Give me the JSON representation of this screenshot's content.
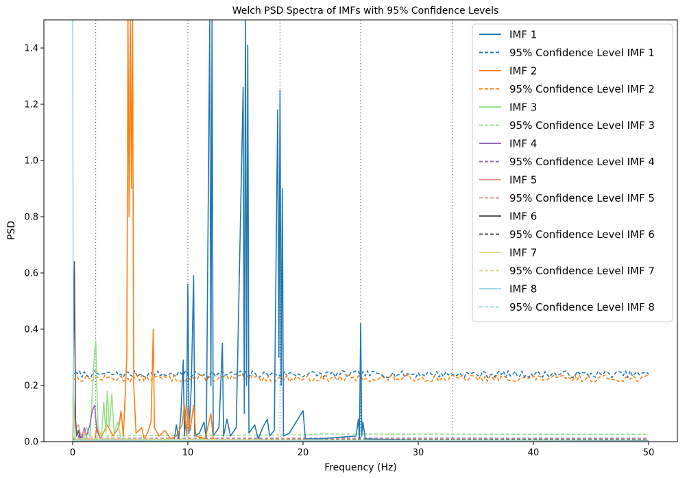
{
  "chart_data": {
    "type": "line",
    "title": "Welch PSD Spectra of IMFs with 95% Confidence Levels",
    "xlabel": "Frequency (Hz)",
    "ylabel": "PSD",
    "xlim": [
      -2.5,
      52.5
    ],
    "ylim": [
      0,
      1.5
    ],
    "xticks": [
      0,
      10,
      20,
      30,
      40,
      50
    ],
    "xtick_labels": [
      "0",
      "10",
      "20",
      "30",
      "40",
      "50"
    ],
    "yticks": [
      0.0,
      0.2,
      0.4,
      0.6,
      0.8,
      1.0,
      1.2,
      1.4
    ],
    "ytick_labels": [
      "0.0",
      "0.2",
      "0.4",
      "0.6",
      "0.8",
      "1.0",
      "1.2",
      "1.4"
    ],
    "grid": false,
    "legend_position": "top-right",
    "vlines": [
      2,
      10,
      18,
      25,
      33
    ],
    "vline_style": "dotted gray",
    "series": [
      {
        "name": "IMF 1",
        "color": "#1f77b4",
        "style": "solid",
        "points": [
          [
            0,
            0
          ],
          [
            8.8,
            0
          ],
          [
            9.0,
            0.06
          ],
          [
            9.2,
            0.01
          ],
          [
            9.4,
            0.1
          ],
          [
            9.6,
            0.29
          ],
          [
            9.7,
            0.02
          ],
          [
            9.9,
            0.15
          ],
          [
            10.0,
            0.56
          ],
          [
            10.1,
            0.03
          ],
          [
            10.3,
            0.2
          ],
          [
            10.5,
            0.59
          ],
          [
            10.6,
            0.02
          ],
          [
            11.0,
            0.03
          ],
          [
            11.4,
            0.07
          ],
          [
            11.6,
            0.01
          ],
          [
            11.9,
            1.5
          ],
          [
            12.0,
            0.2
          ],
          [
            12.1,
            1.5
          ],
          [
            12.2,
            0.02
          ],
          [
            12.7,
            0.05
          ],
          [
            13.0,
            0.35
          ],
          [
            13.1,
            0.02
          ],
          [
            13.4,
            0.08
          ],
          [
            13.7,
            0.02
          ],
          [
            14.2,
            0.05
          ],
          [
            14.8,
            1.26
          ],
          [
            14.9,
            0.1
          ],
          [
            15.0,
            1.5
          ],
          [
            15.1,
            0.2
          ],
          [
            15.2,
            1.41
          ],
          [
            15.3,
            0.03
          ],
          [
            15.8,
            0.06
          ],
          [
            16.1,
            0.01
          ],
          [
            16.5,
            0.05
          ],
          [
            16.9,
            0.08
          ],
          [
            17.1,
            0.02
          ],
          [
            17.5,
            0.04
          ],
          [
            17.8,
            1.18
          ],
          [
            17.9,
            0.3
          ],
          [
            18.0,
            1.25
          ],
          [
            18.1,
            0.2
          ],
          [
            18.2,
            0.9
          ],
          [
            18.3,
            0.02
          ],
          [
            18.8,
            0.03
          ],
          [
            20.0,
            0.11
          ],
          [
            20.2,
            0.01
          ],
          [
            21.5,
            0.01
          ],
          [
            24.6,
            0.02
          ],
          [
            24.8,
            0.08
          ],
          [
            24.9,
            0.01
          ],
          [
            25.0,
            0.42
          ],
          [
            25.1,
            0.02
          ],
          [
            25.2,
            0.07
          ],
          [
            25.4,
            0.01
          ],
          [
            30,
            0.005
          ],
          [
            50,
            0.003
          ]
        ]
      },
      {
        "name": "95% Confidence Level IMF 1",
        "color": "#1f77b4",
        "style": "dashed",
        "points": [
          [
            0,
            0.24
          ],
          [
            50,
            0.24
          ]
        ],
        "noise": 0.012,
        "noise_seed": 7
      },
      {
        "name": "IMF 2",
        "color": "#ff7f0e",
        "style": "solid",
        "points": [
          [
            0,
            0
          ],
          [
            1.9,
            0
          ],
          [
            2.1,
            0.05
          ],
          [
            2.4,
            0.01
          ],
          [
            3.0,
            0.06
          ],
          [
            3.5,
            0.02
          ],
          [
            4.0,
            0.05
          ],
          [
            4.2,
            0.11
          ],
          [
            4.4,
            0.02
          ],
          [
            4.7,
            0.3
          ],
          [
            4.8,
            1.5
          ],
          [
            4.9,
            0.8
          ],
          [
            5.0,
            1.5
          ],
          [
            5.1,
            0.9
          ],
          [
            5.2,
            1.5
          ],
          [
            5.3,
            0.2
          ],
          [
            5.5,
            0.03
          ],
          [
            6.0,
            0.05
          ],
          [
            6.2,
            0.01
          ],
          [
            6.5,
            0.03
          ],
          [
            6.8,
            0.07
          ],
          [
            7.0,
            0.4
          ],
          [
            7.1,
            0.05
          ],
          [
            7.5,
            0.02
          ],
          [
            8.0,
            0.04
          ],
          [
            8.5,
            0.01
          ],
          [
            9.0,
            0.02
          ],
          [
            9.5,
            0.06
          ],
          [
            9.7,
            0.13
          ],
          [
            9.9,
            0.02
          ],
          [
            10.0,
            0.12
          ],
          [
            10.2,
            0.04
          ],
          [
            10.5,
            0.13
          ],
          [
            10.7,
            0.02
          ],
          [
            11.5,
            0.01
          ],
          [
            12.0,
            0.1
          ],
          [
            12.2,
            0.01
          ],
          [
            13,
            0.005
          ],
          [
            20,
            0.003
          ],
          [
            50,
            0.002
          ]
        ]
      },
      {
        "name": "95% Confidence Level IMF 2",
        "color": "#ff7f0e",
        "style": "dashed",
        "points": [
          [
            0,
            0.225
          ],
          [
            50,
            0.225
          ]
        ],
        "noise": 0.012,
        "noise_seed": 13
      },
      {
        "name": "IMF 3",
        "color": "#98df8a",
        "style": "solid",
        "points": [
          [
            0,
            0
          ],
          [
            0.8,
            0
          ],
          [
            1.2,
            0.05
          ],
          [
            1.5,
            0.02
          ],
          [
            1.9,
            0.32
          ],
          [
            2.0,
            0.36
          ],
          [
            2.2,
            0.05
          ],
          [
            2.5,
            0.02
          ],
          [
            2.7,
            0.14
          ],
          [
            2.9,
            0.03
          ],
          [
            3.0,
            0.18
          ],
          [
            3.2,
            0.05
          ],
          [
            3.4,
            0.17
          ],
          [
            3.6,
            0.03
          ],
          [
            3.9,
            0.07
          ],
          [
            4.2,
            0.01
          ],
          [
            5,
            0.005
          ],
          [
            8,
            0.002
          ],
          [
            50,
            0.001
          ]
        ]
      },
      {
        "name": "95% Confidence Level IMF 3",
        "color": "#98df8a",
        "style": "dashed",
        "points": [
          [
            0,
            0.02
          ],
          [
            20,
            0.024
          ],
          [
            21,
            0.027
          ],
          [
            50,
            0.026
          ]
        ]
      },
      {
        "name": "IMF 4",
        "color": "#9467bd",
        "style": "solid",
        "points": [
          [
            0,
            0
          ],
          [
            0.4,
            0
          ],
          [
            0.6,
            0.03
          ],
          [
            0.8,
            0.01
          ],
          [
            1.0,
            0.05
          ],
          [
            1.2,
            0.02
          ],
          [
            1.5,
            0.06
          ],
          [
            1.7,
            0.11
          ],
          [
            1.9,
            0.13
          ],
          [
            2.1,
            0.04
          ],
          [
            2.4,
            0.01
          ],
          [
            3,
            0.005
          ],
          [
            50,
            0.001
          ]
        ]
      },
      {
        "name": "95% Confidence Level IMF 4",
        "color": "#9467bd",
        "style": "dashed",
        "points": [
          [
            0,
            0.012
          ],
          [
            50,
            0.012
          ]
        ]
      },
      {
        "name": "IMF 5",
        "color": "#e7968b",
        "style": "solid",
        "points": [
          [
            0,
            0
          ],
          [
            0.1,
            0.15
          ],
          [
            0.25,
            0.05
          ],
          [
            0.5,
            0.06
          ],
          [
            0.7,
            0.02
          ],
          [
            1.0,
            0.04
          ],
          [
            1.3,
            0.01
          ],
          [
            2,
            0.005
          ],
          [
            50,
            0.001
          ]
        ]
      },
      {
        "name": "95% Confidence Level IMF 5",
        "color": "#e7968b",
        "style": "dashed",
        "points": [
          [
            0,
            0.01
          ],
          [
            50,
            0.01
          ]
        ]
      },
      {
        "name": "IMF 6",
        "color": "#555555",
        "style": "solid",
        "points": [
          [
            0,
            0
          ],
          [
            0.05,
            0.2
          ],
          [
            0.15,
            0.64
          ],
          [
            0.25,
            0.08
          ],
          [
            0.35,
            0.02
          ],
          [
            0.5,
            0.04
          ],
          [
            0.7,
            0.005
          ],
          [
            50,
            0.001
          ]
        ]
      },
      {
        "name": "95% Confidence Level IMF 6",
        "color": "#555555",
        "style": "dashed",
        "points": [
          [
            0,
            0.008
          ],
          [
            50,
            0.008
          ]
        ]
      },
      {
        "name": "IMF 7",
        "color": "#dbdb8d",
        "style": "solid",
        "points": [
          [
            0,
            0
          ],
          [
            0.05,
            0.3
          ],
          [
            0.1,
            0.08
          ],
          [
            0.2,
            0.01
          ],
          [
            50,
            0.001
          ]
        ]
      },
      {
        "name": "95% Confidence Level IMF 7",
        "color": "#dbdb8d",
        "style": "dashed",
        "points": [
          [
            0,
            0.006
          ],
          [
            50,
            0.006
          ]
        ]
      },
      {
        "name": "IMF 8",
        "color": "#9edae5",
        "style": "solid",
        "points": [
          [
            0,
            1.5
          ],
          [
            0.05,
            0.4
          ],
          [
            0.1,
            0.04
          ],
          [
            0.3,
            0.005
          ],
          [
            50,
            0.001
          ]
        ]
      },
      {
        "name": "95% Confidence Level IMF 8",
        "color": "#9edae5",
        "style": "dashed",
        "points": [
          [
            0,
            0.005
          ],
          [
            50,
            0.005
          ]
        ]
      }
    ]
  }
}
